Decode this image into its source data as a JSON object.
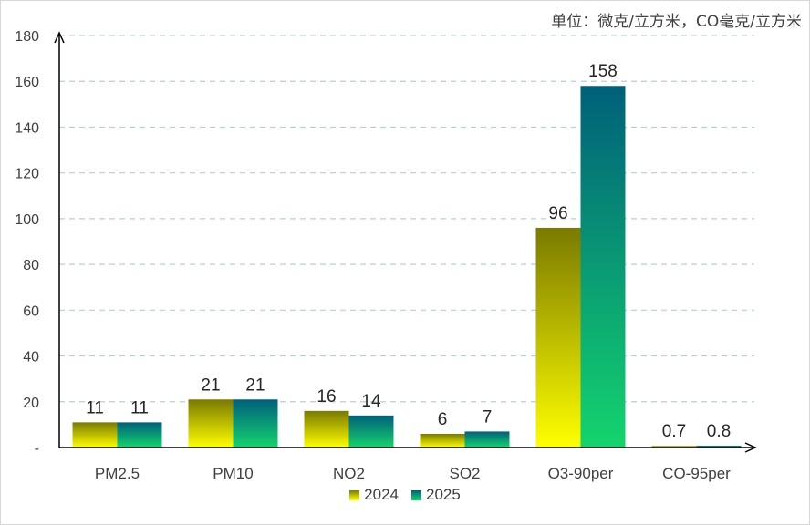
{
  "unit_note": "单位：微克/立方米，CO毫克/立方米",
  "chart_data": {
    "type": "bar",
    "categories": [
      "PM2.5",
      "PM10",
      "NO2",
      "SO2",
      "O3-90per",
      "CO-95per"
    ],
    "series": [
      {
        "name": "2024",
        "values": [
          11,
          21,
          16,
          6,
          96,
          0.7
        ],
        "labels": [
          "11",
          "21",
          "16",
          "6",
          "96",
          "0.7"
        ],
        "color_top": "#7a7a00",
        "color_bottom": "#ffff00"
      },
      {
        "name": "2025",
        "values": [
          11,
          21,
          14,
          7,
          158,
          0.8
        ],
        "labels": [
          "11",
          "21",
          "14",
          "7",
          "158",
          "0.8"
        ],
        "color_top": "#00607a",
        "color_bottom": "#14d46e"
      }
    ],
    "ylim": [
      0,
      180
    ],
    "yticks": [
      0,
      20,
      40,
      60,
      80,
      100,
      120,
      140,
      160,
      180
    ],
    "ytick_labels": [
      "-",
      "20",
      "40",
      "60",
      "80",
      "100",
      "120",
      "140",
      "160",
      "180"
    ],
    "grid": true,
    "legend_position": "bottom"
  }
}
